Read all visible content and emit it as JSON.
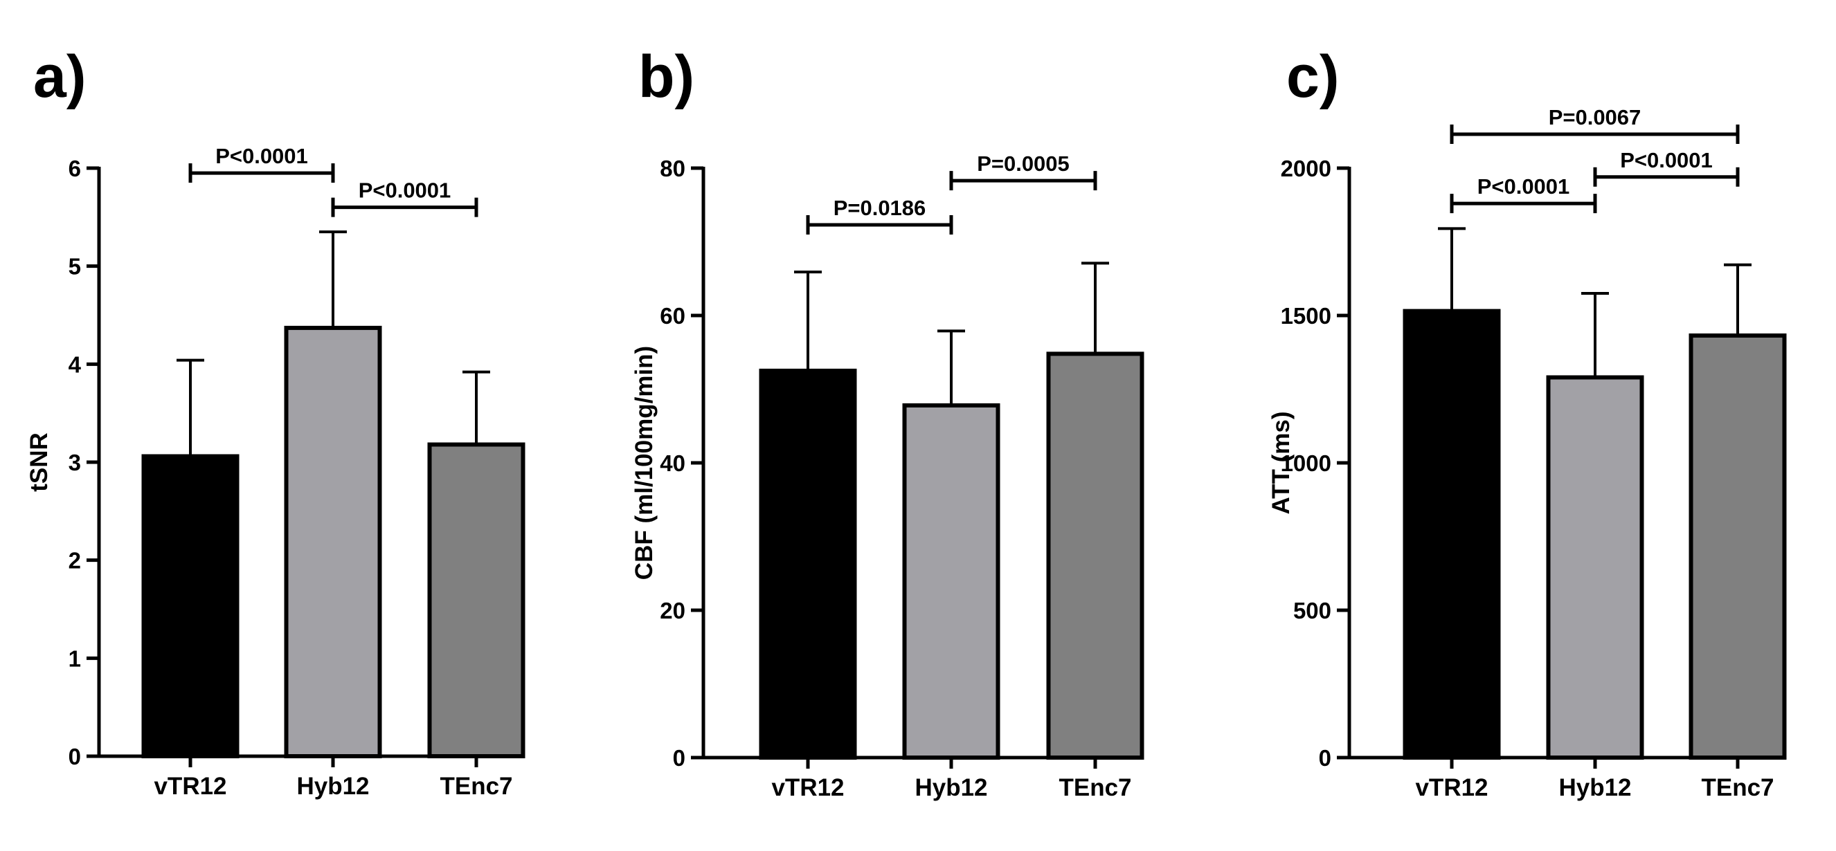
{
  "colors": {
    "vTR12": "#000000",
    "Hyb12": "#a2a1a6",
    "TEnc7": "#808080",
    "outline": "#000000"
  },
  "chart_data": [
    {
      "type": "bar",
      "panel": "a)",
      "categories": [
        "vTR12",
        "Hyb12",
        "TEnc7"
      ],
      "values": [
        3.06,
        4.37,
        3.18
      ],
      "error_plus": [
        0.98,
        0.98,
        0.74
      ],
      "ylabel": "tSNR",
      "xlabel": "",
      "ylim": [
        0,
        6
      ],
      "yticks": [
        0,
        1,
        2,
        3,
        4,
        5,
        6
      ],
      "comparisons": [
        {
          "from": 0,
          "to": 1,
          "label": "P<0.0001",
          "y": 5.95
        },
        {
          "from": 1,
          "to": 2,
          "label": "P<0.0001",
          "y": 5.6
        }
      ]
    },
    {
      "type": "bar",
      "panel": "b)",
      "categories": [
        "vTR12",
        "Hyb12",
        "TEnc7"
      ],
      "values": [
        52.5,
        47.8,
        54.8
      ],
      "error_plus": [
        13.4,
        10.1,
        12.3
      ],
      "ylabel": "CBF (ml/100mg/min)",
      "xlabel": "",
      "ylim": [
        0,
        80
      ],
      "yticks": [
        0,
        20,
        40,
        60,
        80
      ],
      "comparisons": [
        {
          "from": 0,
          "to": 1,
          "label": "P=0.0186",
          "y": 72.3
        },
        {
          "from": 1,
          "to": 2,
          "label": "P=0.0005",
          "y": 78.3
        }
      ]
    },
    {
      "type": "bar",
      "panel": "c)",
      "categories": [
        "vTR12",
        "Hyb12",
        "TEnc7"
      ],
      "values": [
        1515,
        1290,
        1432
      ],
      "error_plus": [
        280,
        285,
        240
      ],
      "ylabel": "ATT (ms)",
      "xlabel": "",
      "ylim": [
        0,
        2000
      ],
      "yticks": [
        0,
        500,
        1000,
        1500,
        2000
      ],
      "comparisons": [
        {
          "from": 0,
          "to": 2,
          "label": "P=0.0067",
          "y": 2115
        },
        {
          "from": 0,
          "to": 1,
          "label": "P<0.0001",
          "y": 1880
        },
        {
          "from": 1,
          "to": 2,
          "label": "P<0.0001",
          "y": 1970
        }
      ]
    }
  ]
}
